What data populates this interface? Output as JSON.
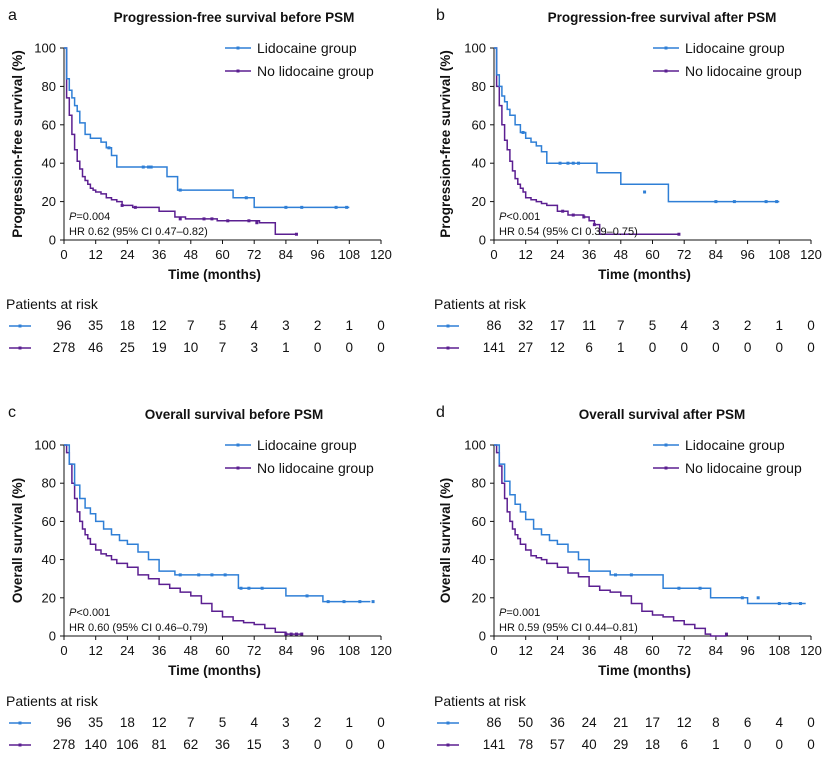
{
  "colors": {
    "lidocaine": "#2f7fd6",
    "no_lidocaine": "#5b1f91",
    "axis": "#111111"
  },
  "chart_data": [
    {
      "panel_label": "a",
      "type": "line",
      "subtype": "kaplan-meier",
      "title": "Progression-free survival before PSM",
      "xlabel": "Time (months)",
      "ylabel": "Progression-free survival (%)",
      "xlim": [
        0,
        120
      ],
      "ylim": [
        0,
        100
      ],
      "xticks": [
        "0",
        "12",
        "24",
        "36",
        "48",
        "60",
        "72",
        "84",
        "96",
        "108",
        "120"
      ],
      "yticks": [
        "0",
        "20",
        "40",
        "60",
        "80",
        "100"
      ],
      "legend": [
        "Lidocaine group",
        "No lidocaine group"
      ],
      "stats": {
        "p_prefix": "P",
        "p_value": "=0.004",
        "hr": "HR 0.62 (95% CI 0.47–0.82)"
      },
      "series": [
        {
          "name": "Lidocaine group",
          "x": [
            0,
            1,
            2,
            3,
            4,
            5,
            6,
            8,
            10,
            14,
            16,
            18,
            20,
            35,
            39,
            43,
            64,
            72,
            108
          ],
          "y": [
            100,
            84,
            78,
            74,
            70,
            67,
            61,
            55,
            53,
            51,
            48,
            44,
            38,
            38,
            33,
            26,
            22,
            17,
            17
          ],
          "censor_x": [
            17,
            30,
            32,
            33,
            44,
            69,
            84,
            90,
            103,
            107
          ],
          "censor_y": [
            48,
            38,
            38,
            38,
            26,
            22,
            17,
            17,
            17,
            17
          ]
        },
        {
          "name": "No lidocaine group",
          "x": [
            0,
            1,
            2,
            3,
            4,
            5,
            6,
            7,
            8,
            9,
            10,
            11,
            12,
            14,
            16,
            18,
            20,
            22,
            26,
            36,
            42,
            46,
            52,
            58,
            74,
            80,
            88
          ],
          "y": [
            100,
            74,
            65,
            55,
            47,
            41,
            37,
            33,
            31,
            29,
            27,
            26,
            25,
            24,
            22,
            21,
            20,
            18,
            17,
            15,
            12,
            11,
            11,
            10,
            9,
            3,
            3
          ],
          "censor_x": [
            22,
            27,
            44,
            53,
            56,
            62,
            70,
            73,
            88
          ],
          "censor_y": [
            18,
            17,
            11,
            11,
            11,
            10,
            10,
            9,
            3
          ]
        }
      ],
      "risk": {
        "heading": "Patients at risk",
        "times": [
          "0",
          "12",
          "24",
          "36",
          "48",
          "60",
          "72",
          "84",
          "96",
          "108",
          "120"
        ],
        "rows": [
          {
            "group": "Lidocaine group",
            "values": [
              "96",
              "35",
              "18",
              "12",
              "7",
              "5",
              "4",
              "3",
              "2",
              "1",
              "0"
            ]
          },
          {
            "group": "No lidocaine group",
            "values": [
              "278",
              "46",
              "25",
              "19",
              "10",
              "7",
              "3",
              "1",
              "0",
              "0",
              "0"
            ]
          }
        ]
      }
    },
    {
      "panel_label": "b",
      "type": "line",
      "subtype": "kaplan-meier",
      "title": "Progression-free survival after PSM",
      "xlabel": "Time (months)",
      "ylabel": "Progression-free survival (%)",
      "xlim": [
        0,
        120
      ],
      "ylim": [
        0,
        100
      ],
      "xticks": [
        "0",
        "12",
        "24",
        "36",
        "48",
        "60",
        "72",
        "84",
        "96",
        "108",
        "120"
      ],
      "yticks": [
        "0",
        "20",
        "40",
        "60",
        "80",
        "100"
      ],
      "legend": [
        "Lidocaine group",
        "No lidocaine group"
      ],
      "stats": {
        "p_prefix": "P",
        "p_value": "<0.001",
        "hr": "HR 0.54 (95% CI 0.39–0.75)"
      },
      "series": [
        {
          "name": "Lidocaine group",
          "x": [
            0,
            1,
            2,
            3,
            4,
            5,
            6,
            8,
            10,
            12,
            14,
            16,
            18,
            20,
            34,
            39,
            48,
            66,
            108
          ],
          "y": [
            100,
            86,
            80,
            75,
            72,
            68,
            65,
            60,
            56,
            53,
            51,
            49,
            46,
            40,
            40,
            35,
            29,
            20,
            20
          ],
          "censor_x": [
            11,
            25,
            28,
            30,
            32,
            57,
            84,
            91,
            103,
            107
          ],
          "censor_y": [
            56,
            40,
            40,
            40,
            40,
            25,
            20,
            20,
            20,
            20
          ]
        },
        {
          "name": "No lidocaine group",
          "x": [
            0,
            1,
            2,
            3,
            4,
            5,
            6,
            7,
            8,
            9,
            10,
            11,
            12,
            14,
            16,
            18,
            20,
            24,
            28,
            34,
            36,
            38,
            40,
            70
          ],
          "y": [
            100,
            80,
            70,
            60,
            52,
            47,
            41,
            36,
            32,
            29,
            27,
            25,
            22,
            21,
            20,
            19,
            18,
            15,
            13,
            12,
            10,
            8,
            3,
            3
          ],
          "censor_x": [
            26,
            30,
            34,
            38,
            70
          ],
          "censor_y": [
            15,
            13,
            12,
            8,
            3
          ]
        }
      ],
      "risk": {
        "heading": "Patients at risk",
        "times": [
          "0",
          "12",
          "24",
          "36",
          "48",
          "60",
          "72",
          "84",
          "96",
          "108",
          "120"
        ],
        "rows": [
          {
            "group": "Lidocaine group",
            "values": [
              "86",
              "32",
              "17",
              "11",
              "7",
              "5",
              "4",
              "3",
              "2",
              "1",
              "0"
            ]
          },
          {
            "group": "No lidocaine group",
            "values": [
              "141",
              "27",
              "12",
              "6",
              "1",
              "0",
              "0",
              "0",
              "0",
              "0",
              "0"
            ]
          }
        ]
      }
    },
    {
      "panel_label": "c",
      "type": "line",
      "subtype": "kaplan-meier",
      "title": "Overall survival before PSM",
      "xlabel": "Time (months)",
      "ylabel": "Overall survival (%)",
      "xlim": [
        0,
        120
      ],
      "ylim": [
        0,
        100
      ],
      "xticks": [
        "0",
        "12",
        "24",
        "36",
        "48",
        "60",
        "72",
        "84",
        "96",
        "108",
        "120"
      ],
      "yticks": [
        "0",
        "20",
        "40",
        "60",
        "80",
        "100"
      ],
      "legend": [
        "Lidocaine group",
        "No lidocaine group"
      ],
      "stats": {
        "p_prefix": "P",
        "p_value": "<0.001",
        "hr": "HR 0.60 (95% CI 0.46–0.79)"
      },
      "series": [
        {
          "name": "Lidocaine group",
          "x": [
            0,
            2,
            4,
            6,
            8,
            10,
            12,
            15,
            18,
            21,
            24,
            28,
            32,
            36,
            42,
            56,
            66,
            84,
            98,
            116
          ],
          "y": [
            100,
            90,
            79,
            72,
            67,
            64,
            60,
            56,
            53,
            50,
            48,
            44,
            40,
            34,
            32,
            32,
            25,
            21,
            18,
            18
          ],
          "censor_x": [
            44,
            51,
            56,
            61,
            67,
            70,
            75,
            92,
            100,
            106,
            112,
            117
          ],
          "censor_y": [
            32,
            32,
            32,
            32,
            25,
            25,
            25,
            21,
            18,
            18,
            18,
            18
          ]
        },
        {
          "name": "No lidocaine group",
          "x": [
            0,
            1,
            2,
            3,
            4,
            5,
            6,
            7,
            8,
            9,
            10,
            12,
            14,
            16,
            18,
            20,
            24,
            28,
            32,
            36,
            40,
            44,
            48,
            52,
            56,
            60,
            64,
            68,
            72,
            76,
            80,
            84,
            86,
            90
          ],
          "y": [
            100,
            96,
            90,
            80,
            72,
            65,
            60,
            56,
            53,
            51,
            48,
            45,
            43,
            42,
            40,
            38,
            36,
            32,
            30,
            27,
            25,
            23,
            21,
            17,
            13,
            10,
            8,
            7,
            6,
            4,
            2,
            1,
            1,
            1
          ],
          "censor_x": [
            84,
            86,
            88,
            90
          ],
          "censor_y": [
            1,
            1,
            1,
            1
          ]
        }
      ],
      "risk": {
        "heading": "Patients at risk",
        "times": [
          "0",
          "12",
          "24",
          "36",
          "48",
          "60",
          "72",
          "84",
          "96",
          "108",
          "120"
        ],
        "rows": [
          {
            "group": "Lidocaine group",
            "values": [
              "96",
              "35",
              "18",
              "12",
              "7",
              "5",
              "4",
              "3",
              "2",
              "1",
              "0"
            ]
          },
          {
            "group": "No lidocaine group",
            "values": [
              "278",
              "140",
              "106",
              "81",
              "62",
              "36",
              "15",
              "3",
              "0",
              "0",
              "0"
            ]
          }
        ]
      }
    },
    {
      "panel_label": "d",
      "type": "line",
      "subtype": "kaplan-meier",
      "title": "Overall survival after PSM",
      "xlabel": "Time (months)",
      "ylabel": "Overall survival (%)",
      "xlim": [
        0,
        120
      ],
      "ylim": [
        0,
        100
      ],
      "xticks": [
        "0",
        "12",
        "24",
        "36",
        "48",
        "60",
        "72",
        "84",
        "96",
        "108",
        "120"
      ],
      "yticks": [
        "0",
        "20",
        "40",
        "60",
        "80",
        "100"
      ],
      "legend": [
        "Lidocaine group",
        "No lidocaine group"
      ],
      "stats": {
        "p_prefix": "P",
        "p_value": "=0.001",
        "hr": "HR 0.59 (95% CI 0.44–0.81)"
      },
      "series": [
        {
          "name": "Lidocaine group",
          "x": [
            0,
            2,
            4,
            6,
            8,
            10,
            12,
            15,
            18,
            21,
            24,
            28,
            32,
            36,
            44,
            56,
            64,
            82,
            96,
            118
          ],
          "y": [
            100,
            90,
            81,
            74,
            69,
            65,
            61,
            56,
            53,
            50,
            48,
            44,
            40,
            34,
            32,
            32,
            25,
            20,
            17,
            17
          ],
          "censor_x": [
            46,
            52,
            70,
            78,
            94,
            100,
            108,
            112,
            116
          ],
          "censor_y": [
            32,
            32,
            25,
            25,
            20,
            20,
            17,
            17,
            17
          ]
        },
        {
          "name": "No lidocaine group",
          "x": [
            0,
            1,
            2,
            3,
            4,
            5,
            6,
            7,
            8,
            9,
            10,
            12,
            14,
            16,
            18,
            20,
            24,
            28,
            32,
            36,
            40,
            44,
            48,
            52,
            56,
            60,
            64,
            68,
            72,
            76,
            80,
            82,
            88
          ],
          "y": [
            100,
            96,
            89,
            80,
            72,
            65,
            60,
            56,
            53,
            51,
            48,
            45,
            42,
            41,
            40,
            38,
            36,
            33,
            31,
            26,
            24,
            23,
            21,
            17,
            13,
            11,
            10,
            8,
            6,
            4,
            1,
            0,
            0
          ],
          "censor_x": [
            88
          ],
          "censor_y": [
            1
          ]
        }
      ],
      "risk": {
        "heading": "Patients at risk",
        "times": [
          "0",
          "12",
          "24",
          "36",
          "48",
          "60",
          "72",
          "84",
          "96",
          "108",
          "120"
        ],
        "rows": [
          {
            "group": "Lidocaine group",
            "values": [
              "86",
              "50",
              "36",
              "24",
              "21",
              "17",
              "12",
              "8",
              "6",
              "4",
              "0"
            ]
          },
          {
            "group": "No lidocaine group",
            "values": [
              "141",
              "78",
              "57",
              "40",
              "29",
              "18",
              "6",
              "1",
              "0",
              "0",
              "0"
            ]
          }
        ]
      }
    }
  ]
}
